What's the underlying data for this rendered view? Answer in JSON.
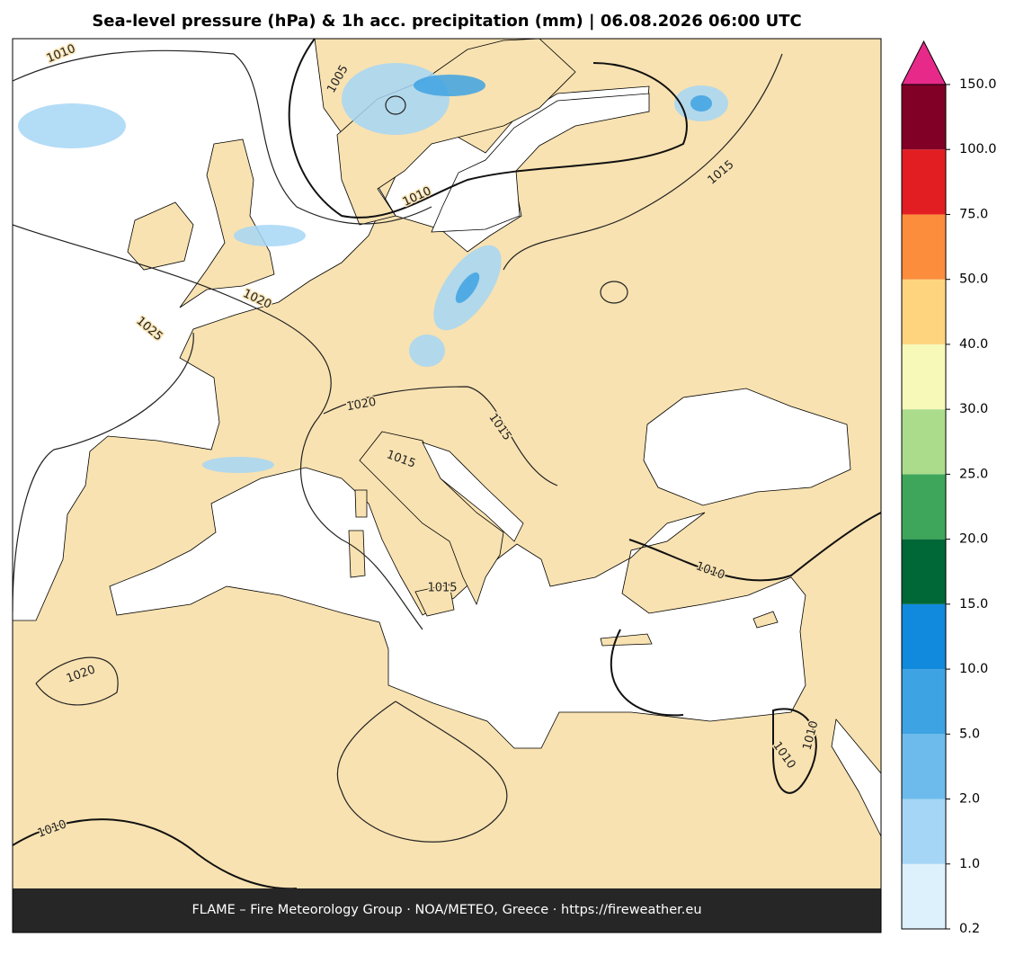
{
  "title": "Sea-level pressure (hPa) & 1h acc. precipitation (mm)  |  06.08.2026 06:00 UTC",
  "footer": "FLAME – Fire Meteorology Group · NOA/METEO, Greece · https://fireweather.eu",
  "contour_labels": [
    "1010",
    "1005",
    "1010",
    "1015",
    "1020",
    "1025",
    "1020",
    "1015",
    "1015",
    "1015",
    "1010",
    "1020",
    "1010",
    "1010",
    "1010"
  ],
  "colorbar": {
    "ticks": [
      {
        "value": 0.2,
        "label": "0.2"
      },
      {
        "value": 1,
        "label": "1.0"
      },
      {
        "value": 2,
        "label": "2.0"
      },
      {
        "value": 5,
        "label": "5.0"
      },
      {
        "value": 10,
        "label": "10.0"
      },
      {
        "value": 15,
        "label": "15.0"
      },
      {
        "value": 20,
        "label": "20.0"
      },
      {
        "value": 25,
        "label": "25.0"
      },
      {
        "value": 30,
        "label": "30.0"
      },
      {
        "value": 40,
        "label": "40.0"
      },
      {
        "value": 50,
        "label": "50.0"
      },
      {
        "value": 75,
        "label": "75.0"
      },
      {
        "value": 100,
        "label": "100.0"
      },
      {
        "value": 150,
        "label": "150.0"
      }
    ],
    "colors": [
      "#ddf1fc",
      "#a6d6f6",
      "#6cbbec",
      "#3ea3e3",
      "#1189dc",
      "#006837",
      "#3ea65a",
      "#abdc8c",
      "#f7f9b9",
      "#fed57e",
      "#fb8d3d",
      "#e21e22",
      "#800026"
    ],
    "extend_color": "#e7298a"
  }
}
